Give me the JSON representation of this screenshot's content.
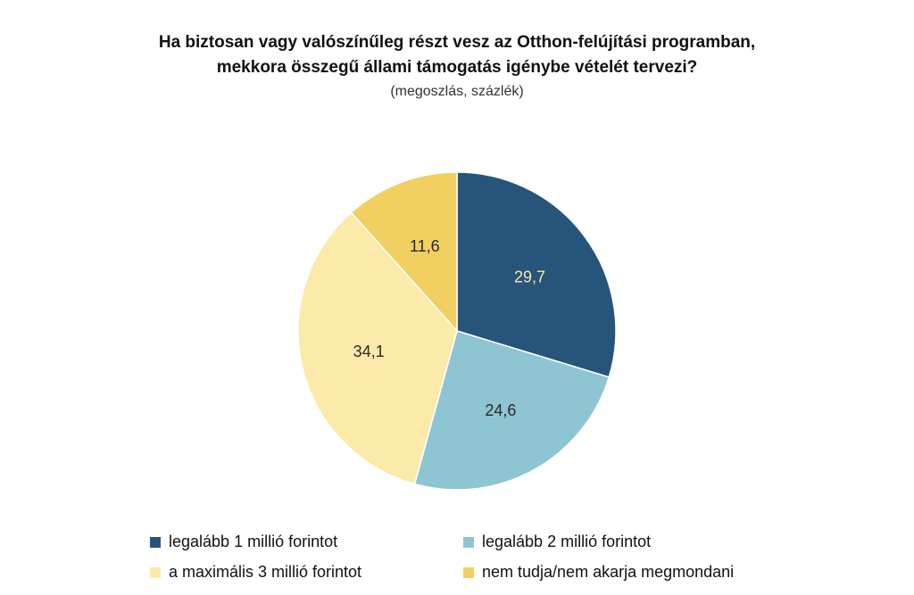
{
  "chart_data": {
    "type": "pie",
    "title_lines": [
      "Ha biztosan vagy valószínűleg részt vesz az Otthon-felújítási programban,",
      "mekkora összegű állami támogatás igénybe vételét tervezi?"
    ],
    "subtitle": "(megoszlás, százlék)",
    "slices": [
      {
        "label": "legalább 1 millió forintot",
        "value": 29.7,
        "value_label": "29,7",
        "color": "#27547a",
        "label_color": "#f5e9a6"
      },
      {
        "label": "legalább 2 millió forintot",
        "value": 24.6,
        "value_label": "24,6",
        "color": "#8ec5d3",
        "label_color": "#2a2a2a"
      },
      {
        "label": "a maximális 3 millió forintot",
        "value": 34.1,
        "value_label": "34,1",
        "color": "#fbeaa9",
        "label_color": "#2a2a2a"
      },
      {
        "label": "nem tudja/nem akarja megmondani",
        "value": 11.6,
        "value_label": "11,6",
        "color": "#f1d061",
        "label_color": "#2a2a2a"
      }
    ],
    "start_angle_deg": 0,
    "direction": "clockwise",
    "legend_position": "bottom"
  }
}
